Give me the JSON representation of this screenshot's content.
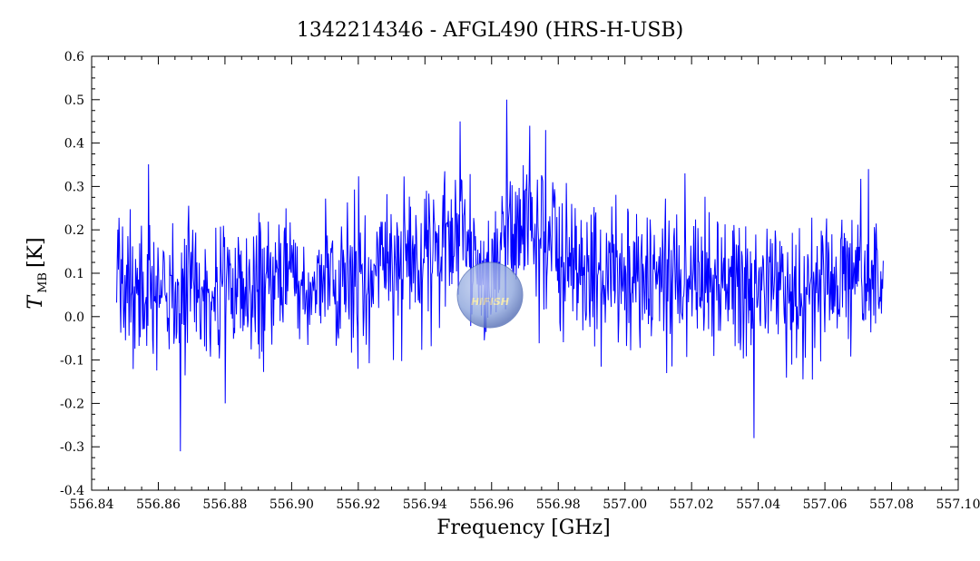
{
  "chart_data": {
    "type": "line",
    "title": "1342214346 - AFGL490 (HRS-H-USB)",
    "xlabel": "Frequency [GHz]",
    "ylabel_main": "T",
    "ylabel_sub": "MB",
    "ylabel_unit": "[K]",
    "xlim": [
      556.84,
      557.1
    ],
    "ylim": [
      -0.4,
      0.6
    ],
    "x_ticks": [
      "556.84",
      "556.86",
      "556.88",
      "556.90",
      "556.92",
      "556.94",
      "556.96",
      "556.98",
      "557.00",
      "557.02",
      "557.04",
      "557.06",
      "557.08",
      "557.10"
    ],
    "y_ticks": [
      "0.6",
      "0.5",
      "0.4",
      "0.3",
      "0.2",
      "0.1",
      "0.0",
      "-0.1",
      "-0.2",
      "-0.3",
      "-0.4"
    ],
    "series": [
      {
        "color": "#0000ff",
        "x_range": [
          556.8475,
          557.0775
        ],
        "profile": [
          {
            "x": 556.8475,
            "y": 0.05
          },
          {
            "x": 556.88,
            "y": 0.06
          },
          {
            "x": 556.92,
            "y": 0.08
          },
          {
            "x": 556.94,
            "y": 0.17
          },
          {
            "x": 556.95,
            "y": 0.22
          },
          {
            "x": 556.955,
            "y": 0.12
          },
          {
            "x": 556.958,
            "y": 0.02
          },
          {
            "x": 556.962,
            "y": 0.18
          },
          {
            "x": 556.97,
            "y": 0.2
          },
          {
            "x": 556.985,
            "y": 0.13
          },
          {
            "x": 557.0,
            "y": 0.09
          },
          {
            "x": 557.04,
            "y": 0.07
          },
          {
            "x": 557.0775,
            "y": 0.08
          }
        ],
        "noise_sigma": 0.085,
        "spikes": [
          {
            "x": 556.9505,
            "y": 0.45
          },
          {
            "x": 556.9645,
            "y": 0.5
          },
          {
            "x": 556.9715,
            "y": 0.44
          },
          {
            "x": 557.0388,
            "y": -0.28
          },
          {
            "x": 556.88,
            "y": -0.2
          },
          {
            "x": 556.9305,
            "y": -0.1
          },
          {
            "x": 557.018,
            "y": 0.33
          },
          {
            "x": 557.073,
            "y": 0.34
          }
        ]
      }
    ],
    "grid": false,
    "legend": "none"
  },
  "watermark": {
    "text": "HIFISH",
    "colors": {
      "globe": "#8fa7dd",
      "globe_edge": "#5a73b8",
      "text": "#f4e9a0"
    }
  }
}
